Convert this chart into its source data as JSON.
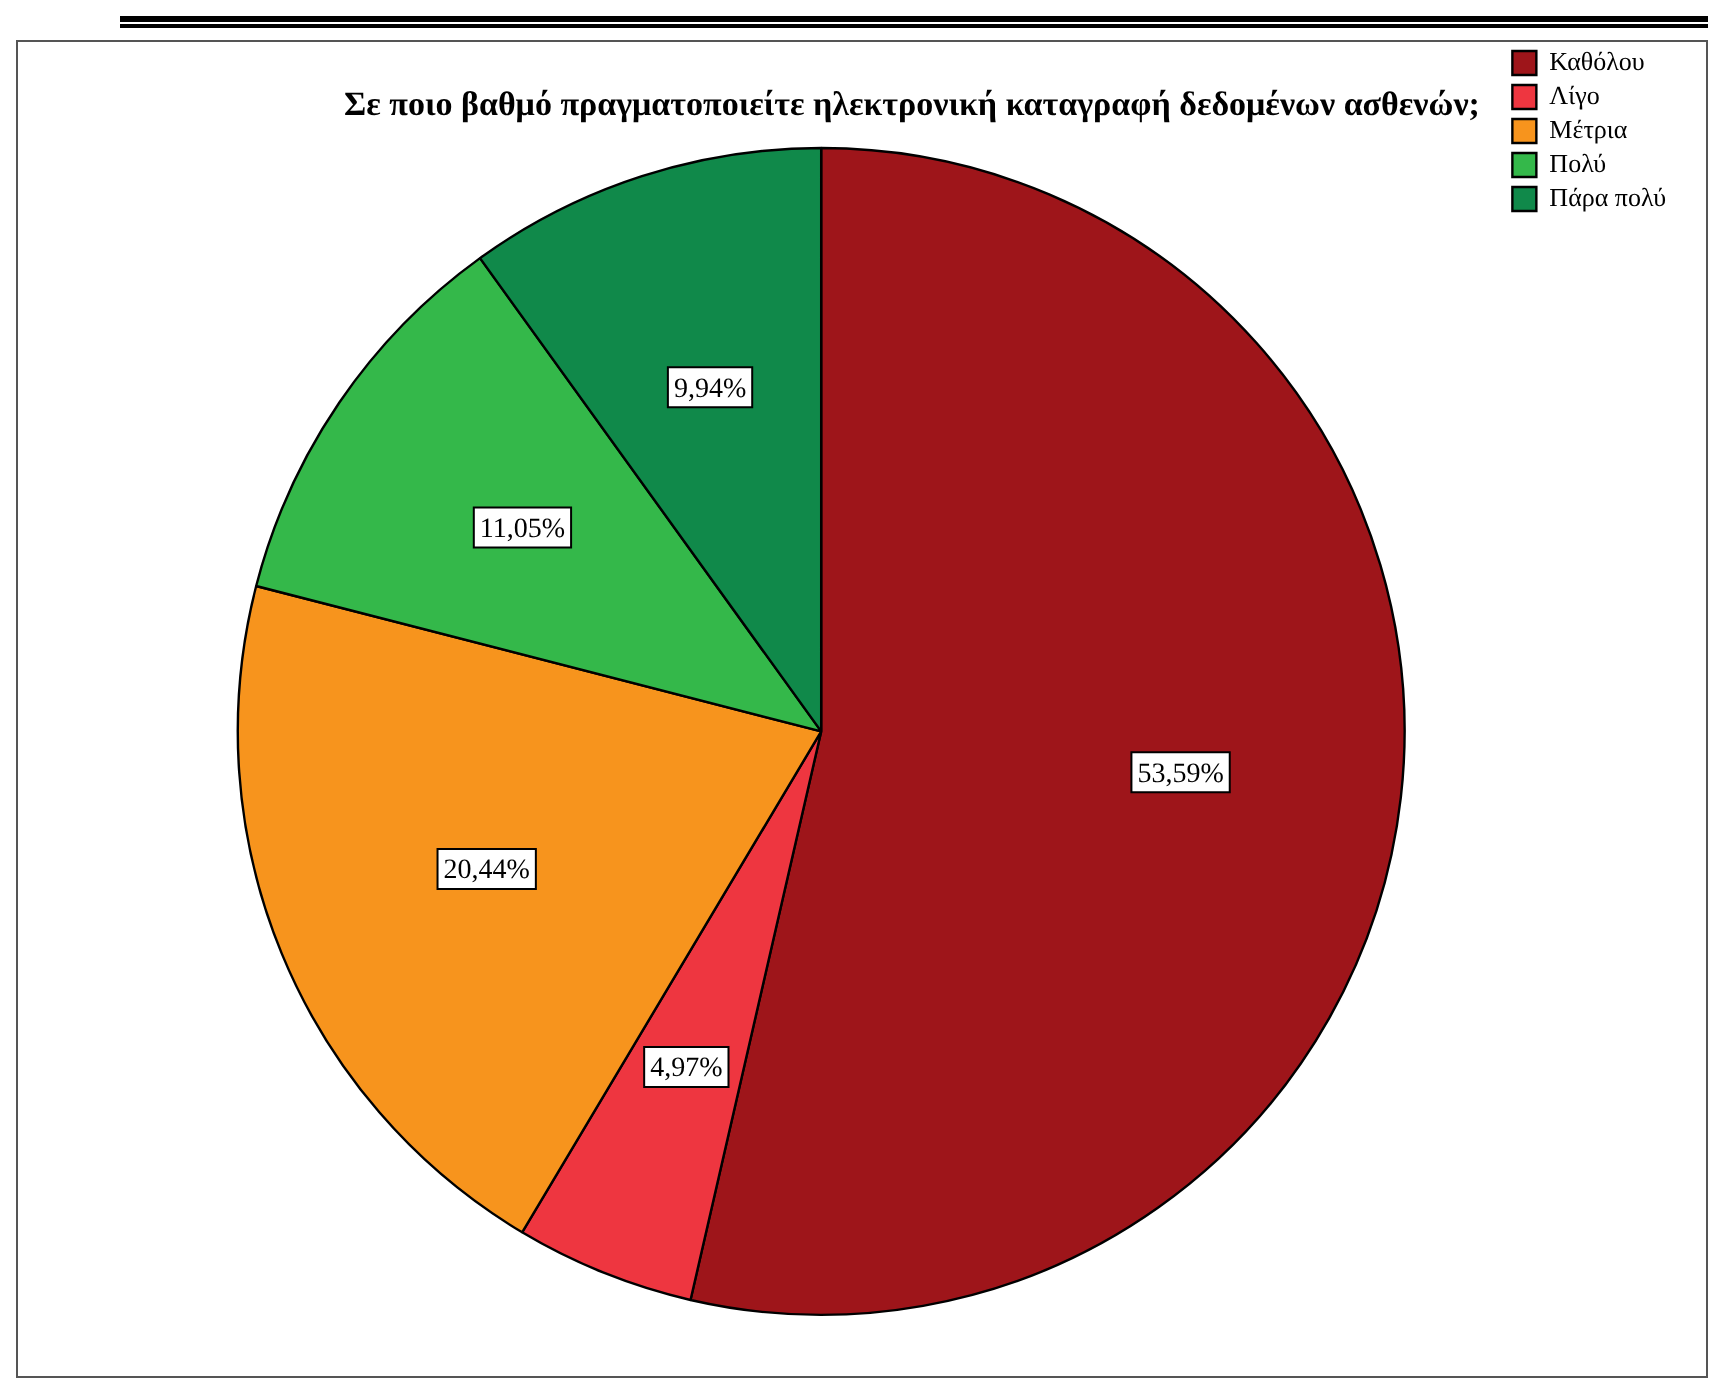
{
  "chart_data": {
    "type": "pie",
    "title": "Σε ποιο βαθμό πραγματοποιείτε ηλεκτρονική καταγραφή δεδομένων ασθενών;",
    "categories": [
      "Καθόλου",
      "Λίγο",
      "Μέτρια",
      "Πολύ",
      "Πάρα πολύ"
    ],
    "values": [
      53.59,
      4.97,
      20.44,
      11.05,
      9.94
    ],
    "value_labels": [
      "53,59%",
      "4,97%",
      "20,44%",
      "11,05%",
      "9,94%"
    ],
    "colors": [
      "#9e151a",
      "#ee3640",
      "#f7941d",
      "#34b84a",
      "#10894a"
    ],
    "legend": "top right"
  }
}
